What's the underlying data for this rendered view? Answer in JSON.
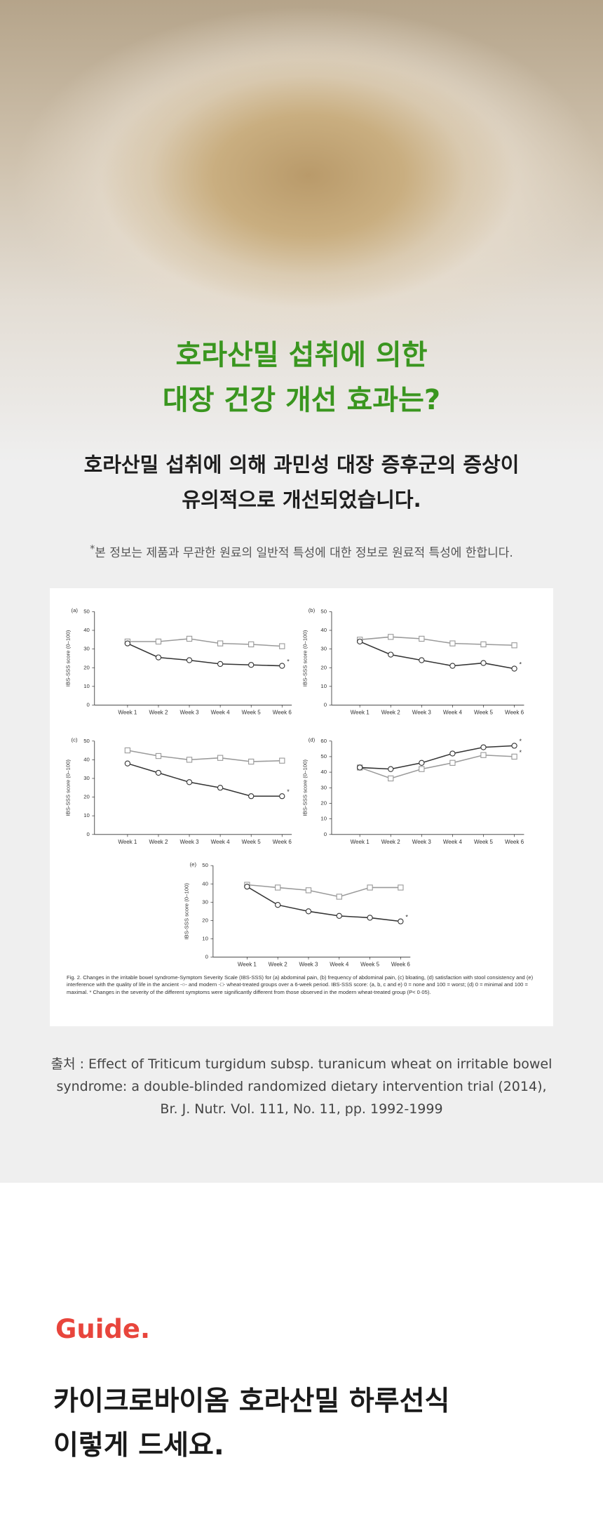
{
  "hero": {
    "title_lines": [
      "호라산밀 섭취에 의한",
      "대장 건강 개선 효과는?"
    ]
  },
  "intro": {
    "lines": [
      "호라산밀 섭취에 의해 과민성 대장 증후군의 증상이",
      "유의적으로 개선되었습니다."
    ],
    "note": {
      "mark": "*",
      "text": "본 정보는 제품과 무관한 원료의 일반적 특성에 대한 정보로 원료적 특성에 한합니다."
    }
  },
  "figure": {
    "charts": [
      {
        "type": "line",
        "panel": "(a)",
        "y_label": "IBS-SSS score (0–100)",
        "categories": [
          "Week 1",
          "Week 2",
          "Week 3",
          "Week 4",
          "Week 5",
          "Week 6"
        ],
        "ylim": [
          0,
          50
        ],
        "yticks": [
          0,
          10,
          20,
          30,
          40,
          50
        ],
        "series": [
          {
            "color": "#9a9a9a",
            "marker": "square",
            "values": [
              34,
              34,
              35.5,
              33,
              32.5,
              31.5
            ]
          },
          {
            "color": "#333333",
            "marker": "circle",
            "values": [
              33,
              25.5,
              24,
              22,
              21.5,
              21
            ],
            "annotation": "*"
          }
        ]
      },
      {
        "type": "line",
        "panel": "(b)",
        "y_label": "IBS-SSS score (0–100)",
        "categories": [
          "Week 1",
          "Week 2",
          "Week 3",
          "Week 4",
          "Week 5",
          "Week 6"
        ],
        "ylim": [
          0,
          50
        ],
        "yticks": [
          0,
          10,
          20,
          30,
          40,
          50
        ],
        "series": [
          {
            "color": "#9a9a9a",
            "marker": "square",
            "values": [
              35,
              36.5,
              35.5,
              33,
              32.5,
              32
            ]
          },
          {
            "color": "#333333",
            "marker": "circle",
            "values": [
              34,
              27,
              24,
              21,
              22.5,
              19.5
            ],
            "annotation": "*"
          }
        ]
      },
      {
        "type": "line",
        "panel": "(c)",
        "y_label": "IBS-SSS score (0–100)",
        "categories": [
          "Week 1",
          "Week 2",
          "Week 3",
          "Week 4",
          "Week 5",
          "Week 6"
        ],
        "ylim": [
          0,
          50
        ],
        "yticks": [
          0,
          10,
          20,
          30,
          40,
          50
        ],
        "series": [
          {
            "color": "#9a9a9a",
            "marker": "square",
            "values": [
              45,
              42,
              40,
              41,
              39,
              39.5
            ]
          },
          {
            "color": "#333333",
            "marker": "circle",
            "values": [
              38,
              33,
              28,
              25,
              20.5,
              20.5
            ],
            "annotation": "*"
          }
        ]
      },
      {
        "type": "line",
        "panel": "(d)",
        "y_label": "IBS-SSS score (0–100)",
        "categories": [
          "Week 1",
          "Week 2",
          "Week 3",
          "Week 4",
          "Week 5",
          "Week 6"
        ],
        "ylim": [
          0,
          60
        ],
        "yticks": [
          0,
          10,
          20,
          30,
          40,
          50,
          60
        ],
        "series": [
          {
            "color": "#9a9a9a",
            "marker": "square",
            "values": [
              43,
              36,
              42,
              46,
              51,
              50
            ],
            "annotation": "*"
          },
          {
            "color": "#333333",
            "marker": "circle",
            "values": [
              43,
              42,
              46,
              52,
              56,
              57
            ],
            "annotation": "*"
          }
        ]
      },
      {
        "type": "line",
        "panel": "(e)",
        "y_label": "IBS-SSS score (0–100)",
        "categories": [
          "Week 1",
          "Week 2",
          "Week 3",
          "Week 4",
          "Week 5",
          "Week 6"
        ],
        "ylim": [
          0,
          50
        ],
        "yticks": [
          0,
          10,
          20,
          30,
          40,
          50
        ],
        "series": [
          {
            "color": "#9a9a9a",
            "marker": "square",
            "values": [
              39.5,
              38,
              36.5,
              33,
              38,
              38
            ]
          },
          {
            "color": "#333333",
            "marker": "circle",
            "values": [
              38.5,
              28.5,
              25,
              22.5,
              21.5,
              19.5
            ],
            "annotation": "*"
          }
        ]
      }
    ],
    "caption": "Fig. 2. Changes in the irritable bowel syndrome-Symptom Severity Scale (IBS-SSS) for (a) abdominal pain, (b) frequency of abdominal pain, (c) bloating, (d) satisfaction with stool consistency and (e) interference with the quality of life in the ancient -○- and modern -□- wheat-treated groups over a 6-week period. IBS-SSS score: (a, b, c and e) 0 = none and 100 = worst; (d) 0 = minimal and 100 = maximal. * Changes in the severity of the different symptoms were significantly different from those observed in the modern wheat-treated group (P< 0·05)."
  },
  "source": {
    "lines": [
      "출처 : Effect of Triticum turgidum subsp. turanicum wheat on irritable bowel",
      "syndrome: a double-blinded randomized  dietary intervention trial (2014),",
      "Br. J. Nutr. Vol. 111, No. 11, pp. 1992-1999"
    ]
  },
  "guide": {
    "label": "Guide.",
    "heading_lines": [
      "카이크로바이옴 호라산밀 하루선식",
      "이렇게 드세요."
    ]
  }
}
